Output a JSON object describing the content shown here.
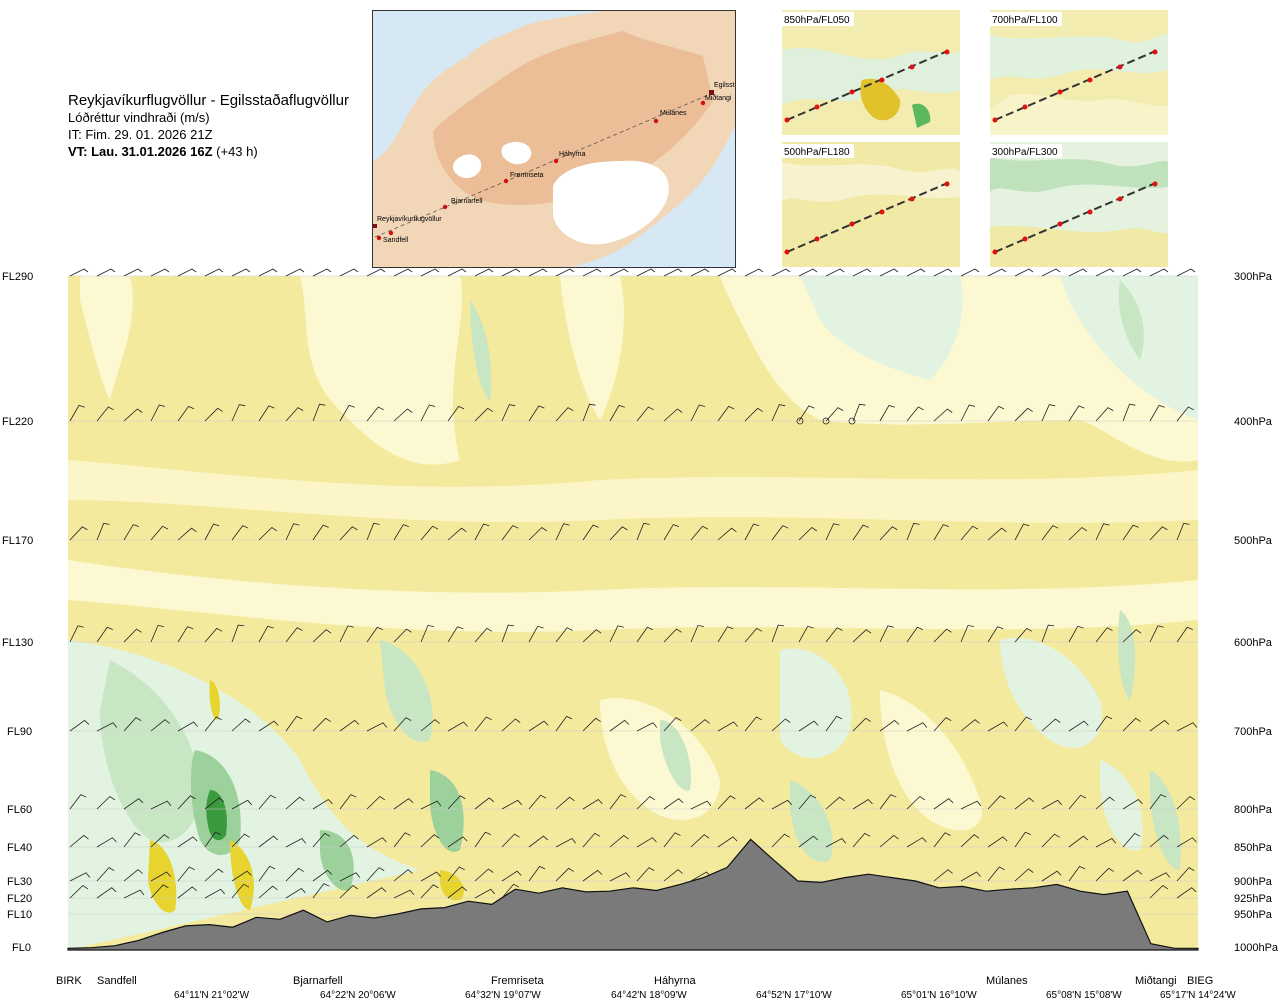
{
  "header": {
    "title": "Reykjavíkurflugvöllur - Egilsstaðaflugvöllur",
    "subtitle": "Lóðréttur vindhraði (m/s)",
    "it": "IT: Fim. 29. 01. 2026 21Z",
    "vt_bold": "VT: Lau. 31.01.2026 16Z",
    "vt_rest": " (+43 h)"
  },
  "route_map": {
    "waypoints": [
      {
        "name": "Sandfell"
      },
      {
        "name": "Reykjavíkurflugvöllur"
      },
      {
        "name": "Bjarnarfell"
      },
      {
        "name": "Fremriseta"
      },
      {
        "name": "Háhyrna"
      },
      {
        "name": "Múlanes"
      },
      {
        "name": "Miðtangi"
      },
      {
        "name": "Egilsst"
      }
    ]
  },
  "mini_maps": [
    {
      "label": "850hPa/FL050"
    },
    {
      "label": "700hPa/FL100"
    },
    {
      "label": "500hPa/FL180"
    },
    {
      "label": "300hPa/FL300"
    }
  ],
  "colors": {
    "terrain": "#7a7a7a",
    "yellow_light": "#f4ea9e",
    "yellow_pale": "#fcf8d2",
    "yellow_strong": "#e8d42e",
    "green_pale": "#e3f3e1",
    "green_light": "#c8e6c4",
    "green_mid": "#9dd19b",
    "green_dark": "#3a9a3e"
  },
  "chart_data": {
    "type": "heatmap",
    "title": "Lóðréttur vindhraði (m/s)",
    "levels": [
      {
        "fl": "FL290",
        "hpa": "300hPa"
      },
      {
        "fl": "FL220",
        "hpa": "400hPa"
      },
      {
        "fl": "FL170",
        "hpa": "500hPa"
      },
      {
        "fl": "FL130",
        "hpa": "600hPa"
      },
      {
        "fl": "FL90",
        "hpa": "700hPa"
      },
      {
        "fl": "FL60",
        "hpa": "800hPa"
      },
      {
        "fl": "FL40",
        "hpa": "850hPa"
      },
      {
        "fl": "FL30",
        "hpa": "900hPa"
      },
      {
        "fl": "FL20",
        "hpa": "925hPa"
      },
      {
        "fl": "FL10",
        "hpa": "950hPa"
      },
      {
        "fl": "FL0",
        "hpa": "1000hPa"
      }
    ],
    "waypoints": [
      "BIRK",
      "Sandfell",
      "Bjarnarfell",
      "Fremriseta",
      "Háhyrna",
      "Múlanes",
      "Miðtangi",
      "BIEG"
    ],
    "coordinates": [
      "64°11'N 21°02'W",
      "64°22'N 20°06'W",
      "64°32'N 19°07'W",
      "64°42'N 18°09'W",
      "64°52'N 17°10'W",
      "65°01'N 16°10'W",
      "65°08'N 15°08'W",
      "65°17'N 14°24'W"
    ],
    "terrain_profile_hpa": [
      1002,
      1001,
      998,
      990,
      978,
      968,
      966,
      970,
      955,
      958,
      944,
      962,
      952,
      956,
      950,
      942,
      940,
      930,
      935,
      912,
      918,
      910,
      916,
      915,
      910,
      914,
      905,
      895,
      880,
      840,
      870,
      900,
      902,
      895,
      890,
      895,
      900,
      910,
      908,
      915,
      912,
      910,
      905,
      915,
      920,
      915,
      995,
      1002,
      1002
    ]
  }
}
